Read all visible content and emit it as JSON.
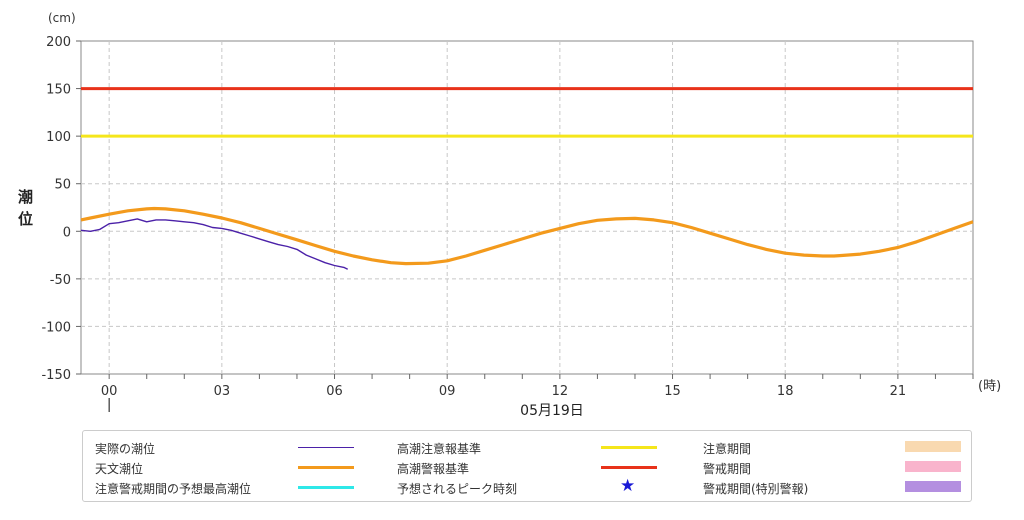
{
  "chart_data": {
    "type": "line",
    "title": "",
    "ylabel": "潮位",
    "yunit": "(cm)",
    "xunit": "(時)",
    "date_label": "05月19日",
    "ylim": [
      -150,
      200
    ],
    "yticks": [
      200,
      150,
      100,
      50,
      0,
      -50,
      -100,
      -150
    ],
    "xlim": [
      -0.75,
      23
    ],
    "xticks": [
      {
        "label": "00",
        "x": 0
      },
      {
        "label": "03",
        "x": 3
      },
      {
        "label": "06",
        "x": 6
      },
      {
        "label": "09",
        "x": 9
      },
      {
        "label": "12",
        "x": 12
      },
      {
        "label": "15",
        "x": 15
      },
      {
        "label": "18",
        "x": 18
      },
      {
        "label": "21",
        "x": 21
      }
    ],
    "grid": true,
    "series": [
      {
        "name": "天文潮位",
        "color": "#f39a1c",
        "x": [
          -0.75,
          -0.5,
          0,
          0.5,
          1,
          1.2,
          1.5,
          2,
          2.5,
          3,
          3.5,
          4,
          4.5,
          5,
          5.5,
          6,
          6.5,
          7,
          7.5,
          7.9,
          8.5,
          9,
          9.5,
          10,
          10.5,
          11,
          11.5,
          12,
          12.5,
          13,
          13.5,
          14,
          14.5,
          15,
          15.5,
          16,
          16.5,
          17,
          17.5,
          18,
          18.5,
          19,
          19.3,
          19.5,
          20,
          20.5,
          21,
          21.5,
          22,
          22.5,
          23
        ],
        "y": [
          12,
          14,
          18,
          21.5,
          23.5,
          24,
          23.5,
          21.5,
          18,
          14,
          9,
          3,
          -3,
          -9,
          -15,
          -21,
          -26,
          -30,
          -33,
          -34,
          -33.5,
          -31,
          -26,
          -20,
          -14,
          -8,
          -2,
          3,
          8,
          11.5,
          13,
          13.5,
          12,
          9,
          4,
          -2,
          -8,
          -14,
          -19,
          -23,
          -25,
          -26,
          -26,
          -25.5,
          -24,
          -21,
          -17,
          -11,
          -4,
          3,
          10
        ]
      },
      {
        "name": "実際の潮位",
        "color": "#4b21a8",
        "x": [
          -0.75,
          -0.5,
          -0.25,
          0,
          0.25,
          0.5,
          0.75,
          1,
          1.25,
          1.5,
          1.75,
          2,
          2.25,
          2.5,
          2.75,
          3,
          3.25,
          3.5,
          3.75,
          4,
          4.25,
          4.5,
          4.75,
          5,
          5.25,
          5.5,
          5.75,
          6,
          6.25,
          6.35
        ],
        "y": [
          1,
          0,
          2,
          8,
          9,
          11,
          13,
          10,
          12,
          12,
          11,
          10,
          9,
          7,
          4,
          3,
          1,
          -2,
          -5,
          -8,
          -11,
          -14,
          -16,
          -19,
          -25,
          -29,
          -33,
          -36,
          -38,
          -40
        ]
      }
    ],
    "reference_lines": [
      {
        "name": "高潮警報基準",
        "value": 150,
        "color": "#e8321a"
      },
      {
        "name": "高潮注意報基準",
        "value": 100,
        "color": "#f5e61b"
      }
    ],
    "current_time_marker": 0,
    "legend_position": "bottom"
  },
  "legend": {
    "items": [
      {
        "label": "実際の潮位",
        "kind": "thin-line",
        "color": "#4b21a8"
      },
      {
        "label": "天文潮位",
        "kind": "line",
        "color": "#f39a1c"
      },
      {
        "label": "注意警戒期間の予想最高潮位",
        "kind": "line",
        "color": "#2ee8e8"
      },
      {
        "label": "高潮注意報基準",
        "kind": "line",
        "color": "#f5e61b"
      },
      {
        "label": "高潮警報基準",
        "kind": "line",
        "color": "#e8321a"
      },
      {
        "label": "予想されるピーク時刻",
        "kind": "star",
        "color": "#1a1ad6"
      },
      {
        "label": "注意期間",
        "kind": "swatch",
        "color": "#f9d9b0"
      },
      {
        "label": "警戒期間",
        "kind": "swatch",
        "color": "#f9b4cc"
      },
      {
        "label": "警戒期間(特別警報)",
        "kind": "swatch",
        "color": "#b48fe0"
      }
    ]
  }
}
